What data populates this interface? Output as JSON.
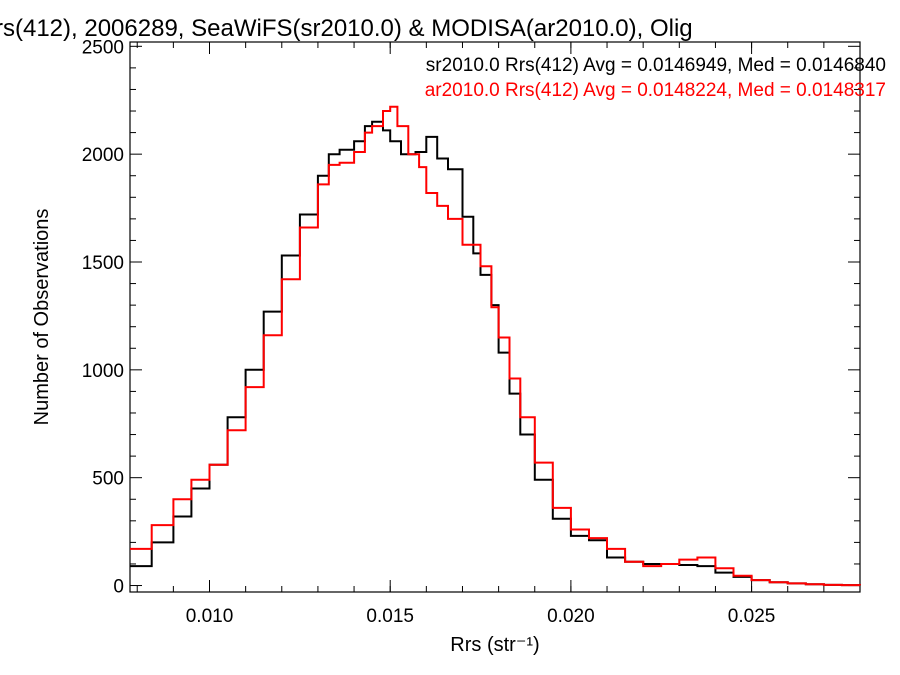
{
  "chart_data": {
    "type": "line",
    "title": "rs(412), 2006289, SeaWiFS(sr2010.0) & MODISA(ar2010.0), Olig",
    "xlabel": "Rrs (str⁻¹)",
    "ylabel": "Number of Observations",
    "xlim": [
      0.0078,
      0.028
    ],
    "ylim": [
      -30,
      2520
    ],
    "xticks": [
      0.01,
      0.015,
      0.02,
      0.025
    ],
    "xtick_labels": [
      "0.010",
      "0.015",
      "0.020",
      "0.025"
    ],
    "yticks": [
      0,
      500,
      1000,
      1500,
      2000,
      2500
    ],
    "ytick_labels": [
      "0",
      "500",
      "1000",
      "1500",
      "2000",
      "2500"
    ],
    "grid": false,
    "legend_placement": "top-right",
    "colors": {
      "sr2010": "#000000",
      "ar2010": "#ff0000"
    },
    "series": [
      {
        "name": "sr2010.0 Rrs(412) Avg = 0.0146949, Med = 0.0146840",
        "color": "#000000",
        "x": [
          0.0078,
          0.0084,
          0.009,
          0.0095,
          0.01,
          0.0105,
          0.011,
          0.0115,
          0.012,
          0.0125,
          0.013,
          0.0133,
          0.0136,
          0.014,
          0.0143,
          0.0145,
          0.0148,
          0.015,
          0.0153,
          0.0157,
          0.016,
          0.0163,
          0.0166,
          0.017,
          0.0173,
          0.0175,
          0.0178,
          0.018,
          0.0183,
          0.0186,
          0.019,
          0.0195,
          0.02,
          0.0205,
          0.021,
          0.0215,
          0.022,
          0.0225,
          0.023,
          0.0235,
          0.024,
          0.0245,
          0.025,
          0.0255,
          0.026,
          0.0265,
          0.027,
          0.0275,
          0.028
        ],
        "y": [
          90,
          200,
          320,
          450,
          560,
          780,
          1000,
          1270,
          1530,
          1720,
          1900,
          2000,
          2020,
          2060,
          2130,
          2150,
          2110,
          2060,
          2000,
          2010,
          2080,
          1980,
          1930,
          1710,
          1540,
          1440,
          1300,
          1080,
          890,
          700,
          490,
          310,
          230,
          210,
          130,
          110,
          100,
          100,
          95,
          90,
          60,
          40,
          25,
          15,
          10,
          6,
          3,
          2,
          1
        ]
      },
      {
        "name": "ar2010.0 Rrs(412) Avg = 0.0148224, Med = 0.0148317",
        "color": "#ff0000",
        "x": [
          0.0078,
          0.0084,
          0.009,
          0.0095,
          0.01,
          0.0105,
          0.011,
          0.0115,
          0.012,
          0.0125,
          0.013,
          0.0133,
          0.0136,
          0.014,
          0.0143,
          0.0145,
          0.0148,
          0.015,
          0.0152,
          0.0155,
          0.0158,
          0.016,
          0.0163,
          0.0166,
          0.017,
          0.0175,
          0.0178,
          0.018,
          0.0183,
          0.0186,
          0.019,
          0.0195,
          0.02,
          0.0205,
          0.021,
          0.0215,
          0.022,
          0.0225,
          0.023,
          0.0235,
          0.024,
          0.0245,
          0.025,
          0.0255,
          0.026,
          0.0265,
          0.027,
          0.0275,
          0.028
        ],
        "y": [
          170,
          280,
          400,
          490,
          560,
          720,
          920,
          1160,
          1420,
          1660,
          1860,
          1950,
          1960,
          2010,
          2100,
          2130,
          2200,
          2220,
          2130,
          2000,
          1940,
          1820,
          1760,
          1700,
          1580,
          1480,
          1290,
          1150,
          960,
          780,
          570,
          360,
          260,
          220,
          170,
          110,
          90,
          100,
          120,
          130,
          80,
          45,
          25,
          15,
          10,
          6,
          3,
          2,
          1
        ]
      }
    ]
  }
}
